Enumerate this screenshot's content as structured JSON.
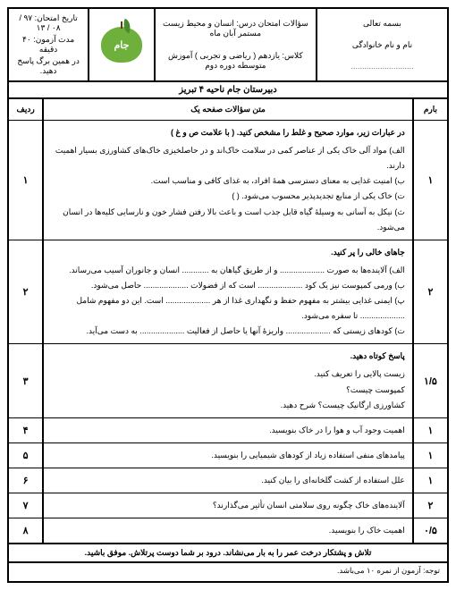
{
  "header": {
    "bismillah": "بسمه تعالی",
    "name_label": "نام و نام خانوادگی",
    "name_dots": "............................",
    "subject_line": "سؤالات امتحان درس: انسان و محیط زیست  مستمر آبان  ماه",
    "class_line": "کلاس:  یازدهم ( ریاضی و تجربی )  آموزش متوسطه دوره دوم",
    "school_line": "دبیرستان  جام   ناحیه ۴ تبریز",
    "exam_date_label": "تاریخ امتحان:",
    "exam_date_value": "۹۷ / ۰۸ / ۱۳",
    "duration_label": "مدت آزمون:",
    "duration_value": "۴۰ دقیقه",
    "answer_note": "در همین برگ پاسخ دهید.",
    "logo_text": "جام"
  },
  "table": {
    "head_score": "بارم",
    "head_body": "متن سؤالات   صفحه یک",
    "head_num": "ردیف"
  },
  "questions": [
    {
      "num": "۱",
      "score": "۱",
      "title": "در عبارات زیر، موارد صحیح و غلط را مشخص کنید.   ( با علامت ص و غ )",
      "lines": [
        "الف) مواد آلی خاک یکی از عناصر کمی در سلامت خاک‌اند و در حاصلخیزی خاک‌های کشاورزی بسیار اهمیت دارند.",
        "ب) امنیت غذایی به معنای دسترسی همهٔ افراد، به غذای کافی و مناسب است.",
        "ت) خاک یکی از منابع تجدیدپذیر محسوب می‌شود.  (             )",
        "ث) نیکل به آسانی به وسیلهٔ گیاه قابل جذب است و باعث بالا رفتن فشار خون و نارسایی کلیه‌ها در انسان می‌شود."
      ]
    },
    {
      "num": "۲",
      "score": "۲",
      "title": "جاهای خالی را پر کنید.",
      "lines": [
        "الف) آلاینده‌ها به صورت .................... و از طریق گیاهان به ............ انسان و جانوران آسیب می‌رساند.",
        "ب) ورمی کمپوست نیز یک کود .................... است که از فضولات .................... حاصل می‌شود.",
        "پ) ایمنی غذایی بیشتر به مفهوم حفظ و نگهداری غذا از هر .................... است. این دو مفهوم شامل .................... تا سفره می‌شود.",
        "ت) کودهای زیستی که .................... واریزهٔ آنها یا حاصل از فعالیت .................... به دست می‌آید."
      ]
    },
    {
      "num": "۳",
      "score": "۱/۵",
      "title": "پاسخ کوتاه دهید.",
      "lines": [
        "زیست پالایی را تعریف کنید.",
        "کمپوست چیست؟",
        "کشاورزی ارگانیک چیست؟ شرح دهید."
      ]
    },
    {
      "num": "۴",
      "score": "۱",
      "title": "",
      "lines": [
        "اهمیت وجود آب و هوا را در خاک بنویسید."
      ]
    },
    {
      "num": "۵",
      "score": "۱",
      "title": "",
      "lines": [
        "پیامدهای منفی استفاده زیاد از کودهای شیمیایی را بنویسید."
      ]
    },
    {
      "num": "۶",
      "score": "۱",
      "title": "",
      "lines": [
        "علل استفاده از کشت گلخانه‌ای را بیان کنید."
      ]
    },
    {
      "num": "۷",
      "score": "۲",
      "title": "",
      "lines": [
        "آلاینده‌های خاک چگونه روی سلامتی انسان تأثیر می‌گذارند؟"
      ]
    },
    {
      "num": "۸",
      "score": "۰/۵",
      "title": "",
      "lines": [
        "اهمیت خاک را بنویسید."
      ]
    }
  ],
  "footer": {
    "wish": "تلاش و پشتکار درخت عمر را به بار می‌نشاند.      درود  بر شما دوست پرتلاش.      موفق باشید.",
    "note": "توجه:   آزمون از نمره ۱۰ می‌باشد."
  }
}
